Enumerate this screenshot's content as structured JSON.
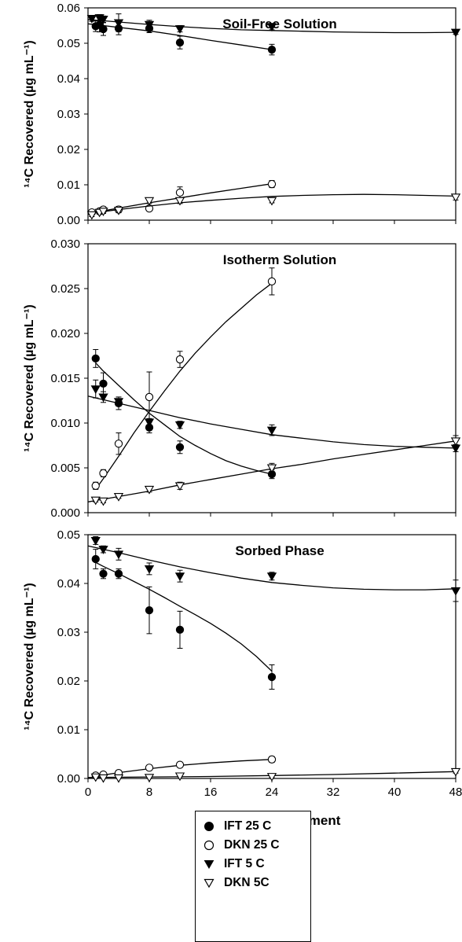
{
  "colors": {
    "ink": "#000000",
    "background": "#ffffff"
  },
  "legend": {
    "placement": "bottom-center",
    "entries": [
      {
        "label": "IFT 25 C",
        "marker": "filled-circle"
      },
      {
        "label": "DKN 25 C",
        "marker": "open-circle"
      },
      {
        "label": "IFT 5 C",
        "marker": "filled-triangle-down"
      },
      {
        "label": "DKN 5C",
        "marker": "open-triangle-down"
      }
    ]
  },
  "xlabel": "Hours After Treatment",
  "chart_data": [
    {
      "type": "line",
      "title": "Soil-Free Solution",
      "ylabel": "¹⁴C Recovered (µg mL⁻¹)",
      "xlim": [
        0,
        48
      ],
      "ylim": [
        0,
        0.06
      ],
      "xticks": [
        "0",
        "8",
        "16",
        "24",
        "32",
        "40",
        "48"
      ],
      "xticks_labeled": false,
      "yticks": [
        "0.00",
        "0.01",
        "0.02",
        "0.03",
        "0.04",
        "0.05",
        "0.06"
      ],
      "series": [
        {
          "name": "IFT 25 C",
          "marker": "filled-circle",
          "x": [
            1,
            1.5,
            2,
            4,
            8,
            12,
            24
          ],
          "y": [
            0.0548,
            0.0552,
            0.054,
            0.0542,
            0.0542,
            0.0502,
            0.0482
          ],
          "err": [
            0.0015,
            0.002,
            0.0018,
            0.0018,
            0.0012,
            0.0018,
            0.0015
          ],
          "fit": [
            [
              0,
              0.0555
            ],
            [
              4,
              0.0545
            ],
            [
              8,
              0.0535
            ],
            [
              12,
              0.0522
            ],
            [
              16,
              0.0508
            ],
            [
              20,
              0.0495
            ],
            [
              24,
              0.0482
            ]
          ]
        },
        {
          "name": "DKN 25 C",
          "marker": "open-circle",
          "x": [
            0.5,
            1.5,
            2,
            4,
            8,
            12,
            24
          ],
          "y": [
            0.0022,
            0.0025,
            0.003,
            0.003,
            0.0033,
            0.0078,
            0.0102
          ],
          "err": [
            0.0006,
            0.0005,
            0.0008,
            0.0009,
            0.0007,
            0.0016,
            0.001
          ],
          "fit": [
            [
              0.5,
              0.0021
            ],
            [
              4,
              0.0034
            ],
            [
              8,
              0.0049
            ],
            [
              12,
              0.0063
            ],
            [
              16,
              0.0077
            ],
            [
              20,
              0.009
            ],
            [
              24,
              0.0103
            ]
          ]
        },
        {
          "name": "IFT 5 C",
          "marker": "filled-triangle-down",
          "x": [
            0.5,
            1.5,
            2,
            4,
            8,
            12,
            24,
            48
          ],
          "y": [
            0.057,
            0.0572,
            0.0568,
            0.0558,
            0.0553,
            0.0541,
            0.0547,
            0.0531
          ],
          "err": [
            0.0008,
            0.0009,
            0.0009,
            0.0025,
            0.0012,
            0.0009,
            0.0009,
            0.0006
          ],
          "fit": [
            [
              0,
              0.0567
            ],
            [
              4,
              0.056
            ],
            [
              8,
              0.0553
            ],
            [
              12,
              0.0547
            ],
            [
              16,
              0.0542
            ],
            [
              20,
              0.0538
            ],
            [
              24,
              0.0536
            ],
            [
              28,
              0.0534
            ],
            [
              32,
              0.0532
            ],
            [
              36,
              0.0531
            ],
            [
              40,
              0.053
            ],
            [
              44,
              0.053
            ],
            [
              48,
              0.0531
            ]
          ]
        },
        {
          "name": "DKN 5C",
          "marker": "open-triangle-down",
          "x": [
            0.5,
            1.5,
            2,
            4,
            8,
            12,
            24,
            48
          ],
          "y": [
            0.0015,
            0.0022,
            0.0025,
            0.0028,
            0.0055,
            0.0055,
            0.0055,
            0.0065
          ],
          "err": [
            0.0005,
            0.0005,
            0.0006,
            0.0007,
            0.0008,
            0.0008,
            0.0006,
            0.0008
          ],
          "fit": [
            [
              0.5,
              0.002
            ],
            [
              4,
              0.003
            ],
            [
              8,
              0.004
            ],
            [
              12,
              0.0049
            ],
            [
              16,
              0.0056
            ],
            [
              20,
              0.0062
            ],
            [
              24,
              0.0067
            ],
            [
              28,
              0.007
            ],
            [
              32,
              0.0072
            ],
            [
              36,
              0.0073
            ],
            [
              40,
              0.0072
            ],
            [
              44,
              0.007
            ],
            [
              48,
              0.0068
            ]
          ]
        }
      ]
    },
    {
      "type": "line",
      "title": "Isotherm Solution",
      "ylabel": "¹⁴C Recovered (µg mL⁻¹)",
      "xlim": [
        0,
        48
      ],
      "ylim": [
        0,
        0.03
      ],
      "xticks": [
        "0",
        "8",
        "16",
        "24",
        "32",
        "40",
        "48"
      ],
      "xticks_labeled": false,
      "yticks": [
        "0.000",
        "0.005",
        "0.010",
        "0.015",
        "0.020",
        "0.025",
        "0.030"
      ],
      "series": [
        {
          "name": "IFT 25 C",
          "marker": "filled-circle",
          "x": [
            1,
            2,
            4,
            8,
            12,
            24
          ],
          "y": [
            0.0172,
            0.0144,
            0.0122,
            0.0095,
            0.0073,
            0.0043
          ],
          "err": [
            0.001,
            0.0012,
            0.0007,
            0.0006,
            0.0007,
            0.0005
          ],
          "fit": [
            [
              1,
              0.0167
            ],
            [
              2,
              0.0158
            ],
            [
              4,
              0.0142
            ],
            [
              6,
              0.0126
            ],
            [
              8,
              0.0111
            ],
            [
              10,
              0.0098
            ],
            [
              12,
              0.0085
            ],
            [
              14,
              0.0075
            ],
            [
              16,
              0.0066
            ],
            [
              18,
              0.0058
            ],
            [
              20,
              0.0052
            ],
            [
              22,
              0.0047
            ],
            [
              24,
              0.0043
            ]
          ]
        },
        {
          "name": "DKN 25 C",
          "marker": "open-circle",
          "x": [
            1,
            2,
            4,
            8,
            12,
            24
          ],
          "y": [
            0.003,
            0.0044,
            0.0077,
            0.0129,
            0.0171,
            0.0258
          ],
          "err": [
            0.0004,
            0.0004,
            0.0012,
            0.0028,
            0.0009,
            0.0015
          ],
          "fit": [
            [
              1,
              0.0026
            ],
            [
              2,
              0.0038
            ],
            [
              4,
              0.0063
            ],
            [
              6,
              0.0089
            ],
            [
              8,
              0.0113
            ],
            [
              10,
              0.0136
            ],
            [
              12,
              0.0158
            ],
            [
              14,
              0.0178
            ],
            [
              16,
              0.0196
            ],
            [
              18,
              0.0213
            ],
            [
              20,
              0.0228
            ],
            [
              22,
              0.0243
            ],
            [
              24,
              0.0256
            ]
          ]
        },
        {
          "name": "IFT 5 C",
          "marker": "filled-triangle-down",
          "x": [
            1,
            2,
            4,
            8,
            12,
            24,
            48
          ],
          "y": [
            0.0138,
            0.0129,
            0.0124,
            0.0101,
            0.0098,
            0.0092,
            0.0072
          ],
          "err": [
            0.001,
            0.0006,
            0.0005,
            0.0004,
            0.0004,
            0.0006,
            0.0004
          ],
          "fit": [
            [
              0,
              0.013
            ],
            [
              4,
              0.0122
            ],
            [
              8,
              0.0114
            ],
            [
              12,
              0.0106
            ],
            [
              16,
              0.0099
            ],
            [
              20,
              0.0093
            ],
            [
              24,
              0.0087
            ],
            [
              28,
              0.0083
            ],
            [
              32,
              0.0079
            ],
            [
              36,
              0.0076
            ],
            [
              40,
              0.0074
            ],
            [
              44,
              0.0073
            ],
            [
              48,
              0.0072
            ]
          ]
        },
        {
          "name": "DKN 5C",
          "marker": "open-triangle-down",
          "x": [
            1,
            2,
            4,
            8,
            12,
            24,
            48
          ],
          "y": [
            0.0014,
            0.0013,
            0.0018,
            0.0026,
            0.003,
            0.005,
            0.008
          ],
          "err": [
            0.0002,
            0.0002,
            0.0002,
            0.0003,
            0.0004,
            0.0005,
            0.0006
          ],
          "fit": [
            [
              0,
              0.0012
            ],
            [
              4,
              0.0018
            ],
            [
              8,
              0.0024
            ],
            [
              12,
              0.0031
            ],
            [
              16,
              0.0037
            ],
            [
              20,
              0.0043
            ],
            [
              24,
              0.0049
            ],
            [
              28,
              0.0054
            ],
            [
              32,
              0.006
            ],
            [
              36,
              0.0065
            ],
            [
              40,
              0.007
            ],
            [
              44,
              0.0075
            ],
            [
              48,
              0.008
            ]
          ]
        }
      ]
    },
    {
      "type": "line",
      "title": "Sorbed Phase",
      "ylabel": "¹⁴C Recovered (µg mL⁻¹)",
      "xlim": [
        0,
        48
      ],
      "ylim": [
        0,
        0.05
      ],
      "xticks": [
        "0",
        "8",
        "16",
        "24",
        "32",
        "40",
        "48"
      ],
      "xticks_labeled": true,
      "yticks": [
        "0.00",
        "0.01",
        "0.02",
        "0.03",
        "0.04",
        "0.05"
      ],
      "series": [
        {
          "name": "IFT 25 C",
          "marker": "filled-circle",
          "x": [
            1,
            2,
            4,
            8,
            12,
            24
          ],
          "y": [
            0.045,
            0.042,
            0.042,
            0.0345,
            0.0305,
            0.0208
          ],
          "err": [
            0.002,
            0.001,
            0.001,
            0.0048,
            0.0038,
            0.0025
          ],
          "fit": [
            [
              1,
              0.0443
            ],
            [
              2,
              0.0435
            ],
            [
              4,
              0.042
            ],
            [
              6,
              0.0404
            ],
            [
              8,
              0.0388
            ],
            [
              10,
              0.0371
            ],
            [
              12,
              0.0353
            ],
            [
              14,
              0.0336
            ],
            [
              16,
              0.0318
            ],
            [
              18,
              0.0298
            ],
            [
              20,
              0.0276
            ],
            [
              22,
              0.025
            ],
            [
              24,
              0.022
            ]
          ]
        },
        {
          "name": "DKN 25 C",
          "marker": "open-circle",
          "x": [
            1,
            2,
            4,
            8,
            12,
            24
          ],
          "y": [
            0.0006,
            0.0008,
            0.0011,
            0.0022,
            0.0028,
            0.0039
          ],
          "err": [
            0.0002,
            0.0002,
            0.0003,
            0.0004,
            0.0004,
            0.0006
          ],
          "fit": [
            [
              1,
              0.0005
            ],
            [
              2,
              0.0007
            ],
            [
              4,
              0.0012
            ],
            [
              8,
              0.002
            ],
            [
              12,
              0.0027
            ],
            [
              16,
              0.0032
            ],
            [
              20,
              0.0036
            ],
            [
              24,
              0.0039
            ]
          ]
        },
        {
          "name": "IFT 5 C",
          "marker": "filled-triangle-down",
          "x": [
            1,
            2,
            4,
            8,
            12,
            24,
            48
          ],
          "y": [
            0.0488,
            0.047,
            0.046,
            0.043,
            0.0415,
            0.0415,
            0.0385
          ],
          "err": [
            0.0008,
            0.0007,
            0.0012,
            0.0012,
            0.0012,
            0.0008,
            0.0022
          ],
          "fit": [
            [
              0,
              0.0477
            ],
            [
              4,
              0.0463
            ],
            [
              8,
              0.0448
            ],
            [
              12,
              0.0434
            ],
            [
              16,
              0.0422
            ],
            [
              20,
              0.0411
            ],
            [
              24,
              0.0402
            ],
            [
              28,
              0.0396
            ],
            [
              32,
              0.0391
            ],
            [
              36,
              0.0388
            ],
            [
              40,
              0.0387
            ],
            [
              44,
              0.0387
            ],
            [
              48,
              0.0389
            ]
          ]
        },
        {
          "name": "DKN 5C",
          "marker": "open-triangle-down",
          "x": [
            1,
            2,
            4,
            8,
            12,
            24,
            48
          ],
          "y": [
            0.0003,
            0.0001,
            0.0001,
            0.0002,
            0.0005,
            0.0004,
            0.0014
          ],
          "err": [
            0.0002,
            0.0001,
            0.0001,
            0.0001,
            0.0002,
            0.0002,
            0.0003
          ],
          "fit": [
            [
              0,
              0.0002
            ],
            [
              8,
              0.0003
            ],
            [
              16,
              0.0004
            ],
            [
              24,
              0.0006
            ],
            [
              32,
              0.0008
            ],
            [
              40,
              0.0011
            ],
            [
              48,
              0.0014
            ]
          ]
        }
      ]
    }
  ]
}
